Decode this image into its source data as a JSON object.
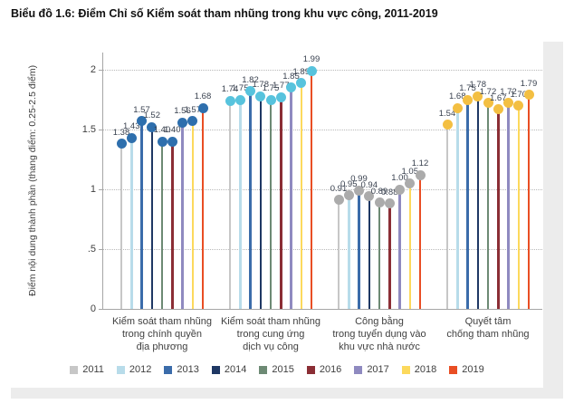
{
  "title": "Biểu đồ 1.6: Điểm Chỉ số Kiểm soát tham nhũng trong khu vực công, 2011-2019",
  "chart_data": {
    "type": "lollipop",
    "ylabel": "Điểm nội dung thành phần (thang điểm: 0.25-2.5 điểm)",
    "ylim": [
      0,
      2.15
    ],
    "grid": "dotted-horizontal",
    "legend_position": "bottom",
    "yticks": [
      {
        "value": 0,
        "label": "0"
      },
      {
        "value": 0.5,
        "label": ".5"
      },
      {
        "value": 1,
        "label": "1"
      },
      {
        "value": 1.5,
        "label": "1.5"
      },
      {
        "value": 2,
        "label": "2"
      }
    ],
    "years": [
      "2011",
      "2012",
      "2013",
      "2014",
      "2015",
      "2016",
      "2017",
      "2018",
      "2019"
    ],
    "year_colors": [
      "#c7c7c7",
      "#b8dcea",
      "#3b6caa",
      "#1f3864",
      "#6d8a74",
      "#8b2e35",
      "#8f8ac0",
      "#fcd95c",
      "#e94e24"
    ],
    "groups": [
      {
        "label_lines": [
          "Kiểm soát tham nhũng",
          "trong chính quyền",
          "địa phương"
        ],
        "dot_color": "#2e6fad",
        "values": [
          1.38,
          1.43,
          1.57,
          1.52,
          1.4,
          1.4,
          1.56,
          1.57,
          1.68
        ]
      },
      {
        "label_lines": [
          "Kiểm soát tham nhũng",
          "trong cung ứng",
          "dịch vụ công"
        ],
        "dot_color": "#57c3dd",
        "values": [
          1.74,
          1.75,
          1.82,
          1.78,
          1.75,
          1.77,
          1.85,
          1.89,
          1.99
        ]
      },
      {
        "label_lines": [
          "Công bằng",
          "trong tuyển dụng vào",
          "khu vực nhà nước"
        ],
        "dot_color": "#ababab",
        "values": [
          0.91,
          0.95,
          0.99,
          0.94,
          0.89,
          0.88,
          1.0,
          1.05,
          1.12
        ]
      },
      {
        "label_lines": [
          "Quyết tâm",
          "chống tham nhũng"
        ],
        "dot_color": "#f3bf42",
        "values": [
          1.54,
          1.68,
          1.75,
          1.78,
          1.72,
          1.67,
          1.72,
          1.7,
          1.79
        ]
      }
    ]
  }
}
